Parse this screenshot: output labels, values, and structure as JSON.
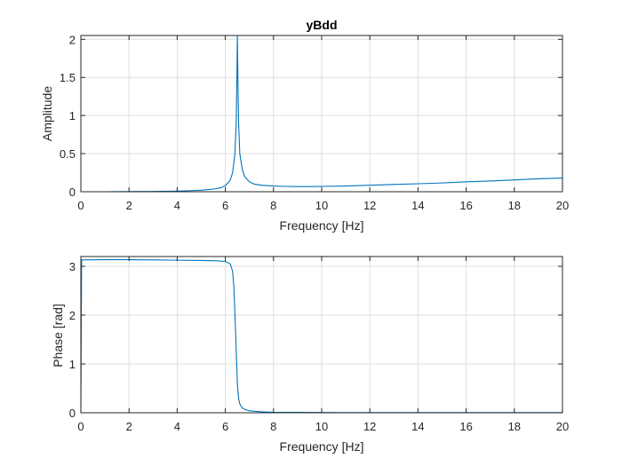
{
  "chart_data": [
    {
      "type": "line",
      "title": "yBdd",
      "xlabel": "Frequency [Hz]",
      "ylabel": "Amplitude",
      "xlim": [
        0,
        20
      ],
      "ylim": [
        0,
        2.05
      ],
      "xticks": [
        0,
        2,
        4,
        6,
        8,
        10,
        12,
        14,
        16,
        18,
        20
      ],
      "xtick_labels": [
        "0",
        "2",
        "4",
        "6",
        "8",
        "10",
        "12",
        "14",
        "16",
        "18",
        "20"
      ],
      "yticks": [
        0,
        0.5,
        1,
        1.5,
        2
      ],
      "ytick_labels": [
        "0",
        "0.5",
        "1",
        "1.5",
        "2"
      ],
      "grid": true,
      "color": "#0072BD",
      "series": [
        {
          "x": [
            0,
            1,
            2,
            3,
            4,
            4.5,
            5,
            5.5,
            5.8,
            6.0,
            6.2,
            6.3,
            6.4,
            6.45,
            6.48,
            6.5,
            6.52,
            6.55,
            6.6,
            6.7,
            6.8,
            7.0,
            7.2,
            7.5,
            8,
            8.5,
            9,
            9.5,
            10,
            11,
            12,
            13,
            14,
            15,
            16,
            17,
            18,
            19,
            20
          ],
          "y": [
            0,
            0,
            0.002,
            0.004,
            0.008,
            0.013,
            0.02,
            0.035,
            0.05,
            0.08,
            0.15,
            0.25,
            0.5,
            0.9,
            1.5,
            2.05,
            1.5,
            0.9,
            0.5,
            0.3,
            0.2,
            0.13,
            0.1,
            0.085,
            0.075,
            0.07,
            0.068,
            0.068,
            0.07,
            0.075,
            0.085,
            0.095,
            0.105,
            0.115,
            0.13,
            0.14,
            0.155,
            0.17,
            0.18
          ]
        }
      ]
    },
    {
      "type": "line",
      "title": "",
      "xlabel": "Frequency [Hz]",
      "ylabel": "Phase [rad]",
      "xlim": [
        0,
        20
      ],
      "ylim": [
        0,
        3.2
      ],
      "xticks": [
        0,
        2,
        4,
        6,
        8,
        10,
        12,
        14,
        16,
        18,
        20
      ],
      "xtick_labels": [
        "0",
        "2",
        "4",
        "6",
        "8",
        "10",
        "12",
        "14",
        "16",
        "18",
        "20"
      ],
      "yticks": [
        0,
        1,
        2,
        3
      ],
      "ytick_labels": [
        "0",
        "1",
        "2",
        "3"
      ],
      "grid": true,
      "color": "#0072BD",
      "series": [
        {
          "x": [
            0,
            0.03,
            1,
            2,
            3,
            4,
            5,
            5.5,
            6.0,
            6.2,
            6.3,
            6.35,
            6.4,
            6.45,
            6.5,
            6.55,
            6.6,
            6.7,
            6.8,
            7.0,
            7.5,
            8,
            10,
            12,
            14,
            16,
            18,
            20
          ],
          "y": [
            0,
            3.13,
            3.135,
            3.135,
            3.13,
            3.125,
            3.12,
            3.115,
            3.1,
            3.05,
            2.9,
            2.6,
            2.0,
            1.3,
            0.6,
            0.3,
            0.18,
            0.1,
            0.07,
            0.04,
            0.02,
            0.01,
            0.005,
            0.003,
            0.003,
            0.003,
            0.003,
            0.004
          ]
        }
      ]
    }
  ]
}
